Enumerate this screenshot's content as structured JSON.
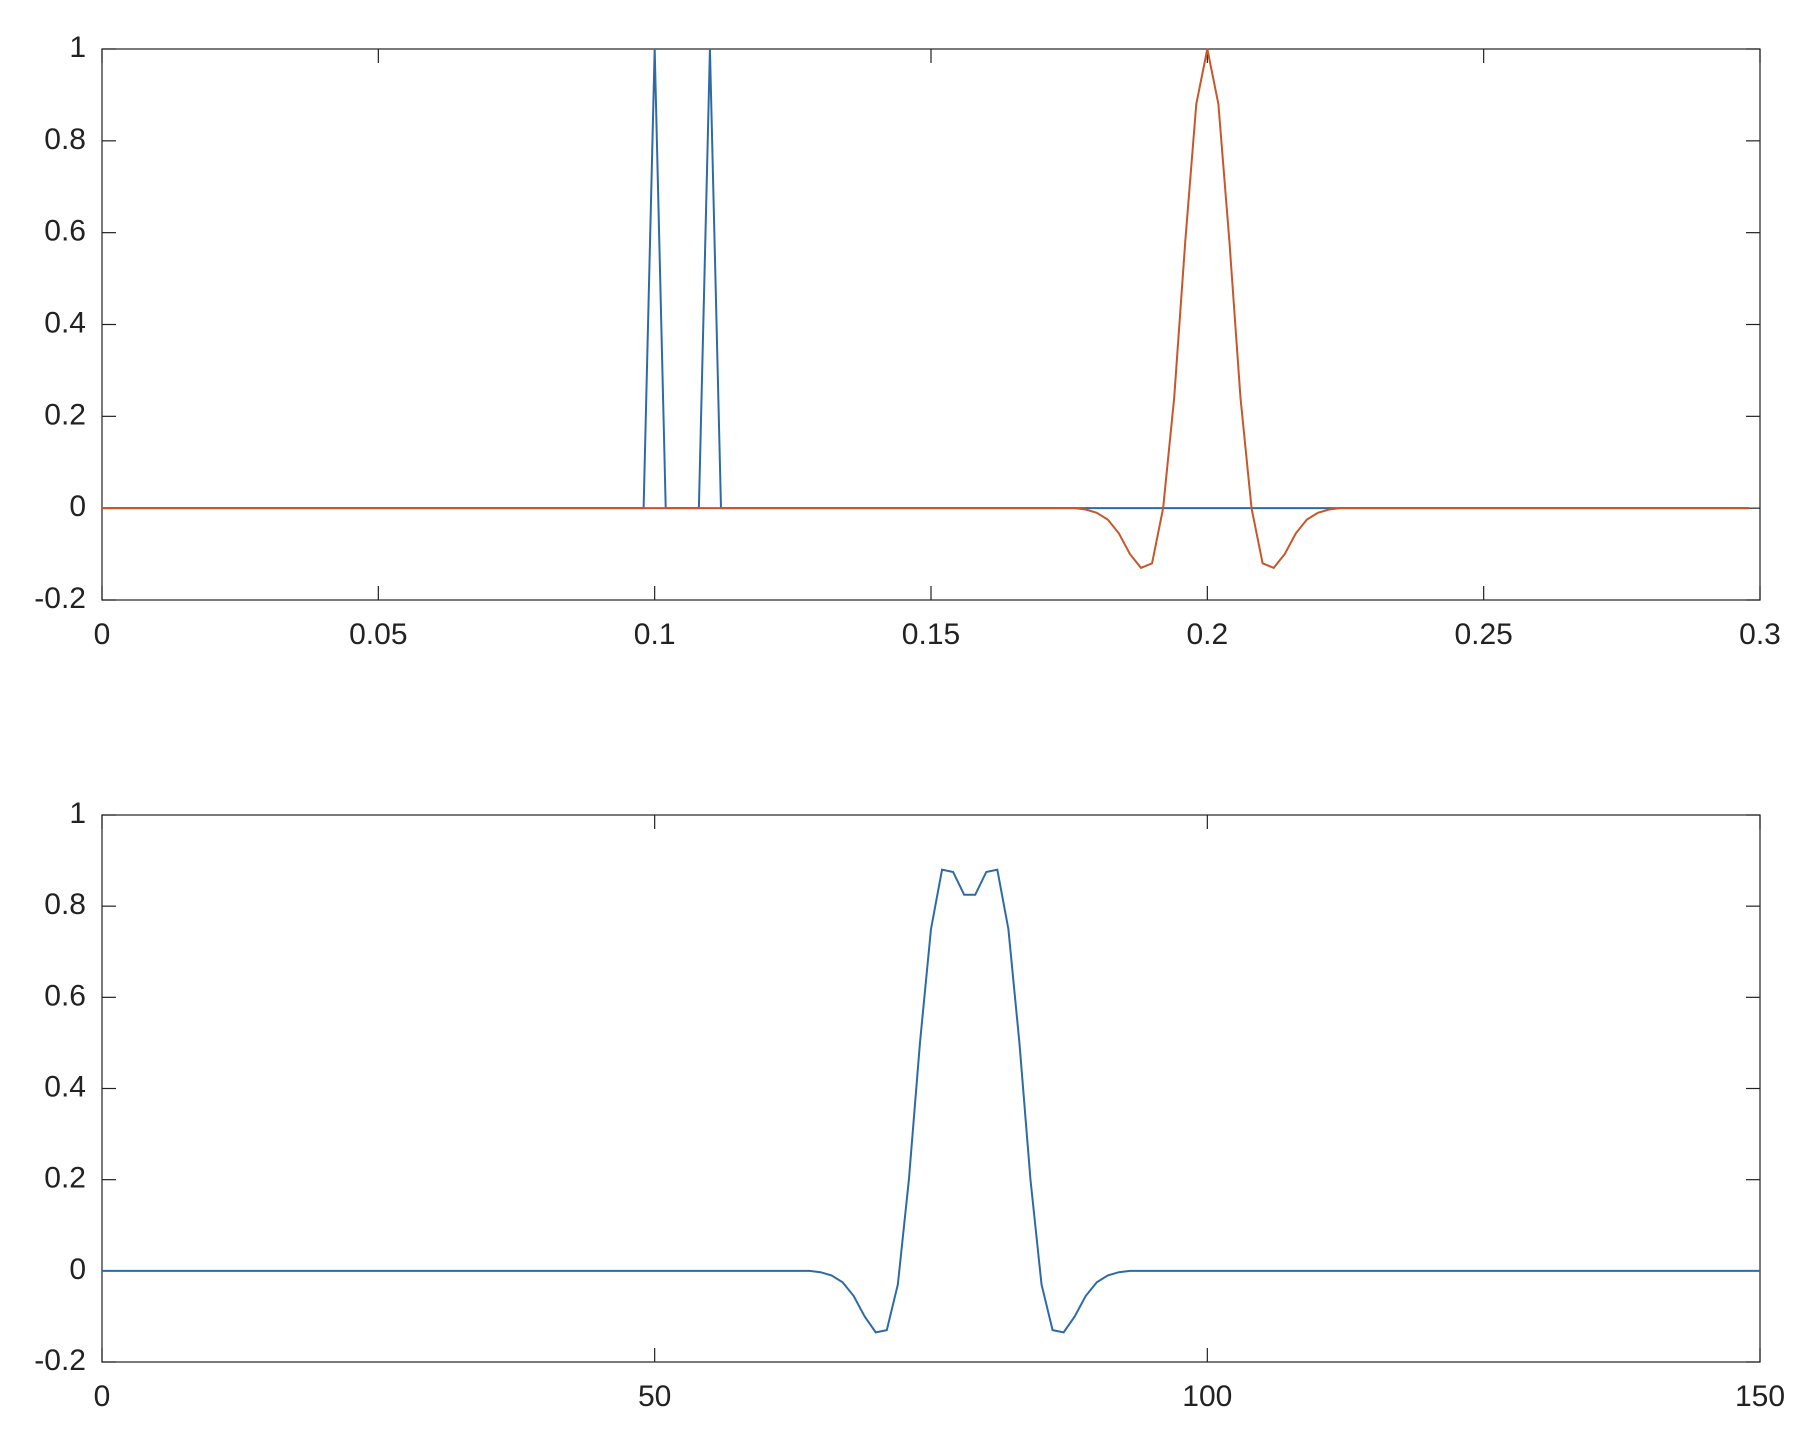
{
  "chart_data": [
    {
      "type": "line",
      "x": [
        0,
        0.098,
        0.1,
        0.102,
        0.108,
        0.11,
        0.112,
        0.176,
        0.178,
        0.18,
        0.182,
        0.184,
        0.186,
        0.188,
        0.19,
        0.192,
        0.194,
        0.196,
        0.198,
        0.2,
        0.202,
        0.204,
        0.206,
        0.208,
        0.21,
        0.212,
        0.214,
        0.216,
        0.218,
        0.22,
        0.222,
        0.224,
        0.298
      ],
      "series": [
        {
          "color": "#2e6aa8",
          "values": [
            0,
            0,
            1,
            0,
            0,
            1,
            0,
            0,
            0,
            0,
            0,
            0,
            0,
            0,
            0,
            0,
            0,
            0,
            0,
            0,
            0,
            0,
            0,
            0,
            0,
            0,
            0,
            0,
            0,
            0,
            0,
            0,
            0
          ]
        },
        {
          "color": "#c8562a",
          "values": [
            0,
            0,
            0,
            0,
            0,
            0,
            0,
            0,
            -0.003,
            -0.01,
            -0.025,
            -0.055,
            -0.1,
            -0.13,
            -0.12,
            0,
            0.24,
            0.58,
            0.88,
            1,
            0.88,
            0.58,
            0.24,
            0,
            -0.12,
            -0.13,
            -0.1,
            -0.055,
            -0.025,
            -0.01,
            -0.003,
            0,
            0
          ]
        }
      ],
      "xlim": [
        0,
        0.3
      ],
      "xticks": [
        0,
        0.05,
        0.1,
        0.15,
        0.2,
        0.25,
        0.3
      ],
      "ylim": [
        -0.2,
        1
      ],
      "yticks": [
        -0.2,
        0,
        0.2,
        0.4,
        0.6,
        0.8,
        1
      ]
    },
    {
      "type": "line",
      "x": [
        0,
        64,
        65,
        66,
        67,
        68,
        69,
        70,
        71,
        72,
        73,
        74,
        75,
        76,
        77,
        78,
        79,
        80,
        81,
        82,
        83,
        84,
        85,
        86,
        87,
        88,
        89,
        90,
        91,
        92,
        93,
        94,
        150
      ],
      "series": [
        {
          "color": "#2e6aa8",
          "values": [
            0,
            0,
            -0.003,
            -0.01,
            -0.025,
            -0.055,
            -0.1,
            -0.135,
            -0.13,
            -0.03,
            0.2,
            0.5,
            0.75,
            0.88,
            0.875,
            0.825,
            0.825,
            0.875,
            0.88,
            0.75,
            0.5,
            0.2,
            -0.03,
            -0.13,
            -0.135,
            -0.1,
            -0.055,
            -0.025,
            -0.01,
            -0.003,
            0,
            0,
            0
          ]
        }
      ],
      "xlim": [
        0,
        150
      ],
      "xticks": [
        0,
        50,
        100,
        150
      ],
      "ylim": [
        -0.2,
        1
      ],
      "yticks": [
        -0.2,
        0,
        0.2,
        0.4,
        0.6,
        0.8,
        1
      ]
    }
  ]
}
